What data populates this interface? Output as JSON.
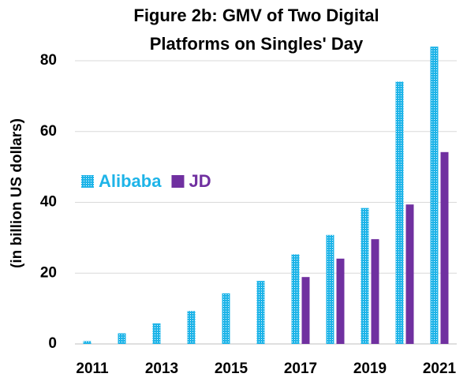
{
  "chart_data": {
    "type": "bar",
    "title": "Figure 2b: GMV of Two Digital Platforms on Singles' Day",
    "y_label": "(in billion US dollars)",
    "categories": [
      "2011",
      null,
      "2013",
      null,
      "2015",
      null,
      "2017",
      null,
      "2019",
      null,
      "2021"
    ],
    "series": [
      {
        "name": "Alibaba",
        "color": "#1eb4e8",
        "values": [
          0.8,
          3,
          5.8,
          9.3,
          14.3,
          17.8,
          25.3,
          30.8,
          38.4,
          74.1,
          84
        ]
      },
      {
        "name": "JD",
        "color": "#7030a0",
        "values": [
          null,
          null,
          null,
          null,
          null,
          null,
          18.9,
          24.1,
          29.6,
          39.4,
          54.2
        ]
      }
    ],
    "ylim": [
      0,
      85
    ],
    "yticks": [
      0,
      20,
      40,
      60,
      80
    ],
    "grid": true,
    "legend": "left"
  }
}
